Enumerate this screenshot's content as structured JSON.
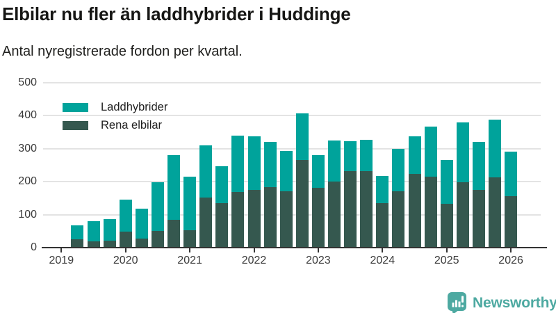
{
  "title": "Elbilar nu fler än laddhybrider i Huddinge",
  "subtitle": "Antal nyregistrerade fordon per kvartal.",
  "legend": [
    {
      "label": "Laddhybrider",
      "color": "#00a39b"
    },
    {
      "label": "Rena elbilar",
      "color": "#35584f"
    }
  ],
  "branding": {
    "name": "Newsworthy",
    "color": "#4da9a1"
  },
  "theme": {
    "title_color": "#161614",
    "axis_color": "#333333",
    "tick_label_color": "#3a3a3a",
    "grid_color": "#e3e3e3",
    "background": "#ffffff"
  },
  "chart_data": {
    "type": "bar",
    "stacked": true,
    "title": "Elbilar nu fler än laddhybrider i Huddinge",
    "subtitle": "Antal nyregistrerade fordon per kvartal.",
    "xlabel": "",
    "ylabel": "",
    "ylim": [
      0,
      500
    ],
    "yticks": [
      0,
      100,
      200,
      300,
      400,
      500
    ],
    "grid": true,
    "legend_position": "top-left-inside",
    "year_ticks": [
      "2019",
      "2020",
      "2021",
      "2022",
      "2023",
      "2024",
      "2025",
      "2026"
    ],
    "categories": [
      "2019 Q2",
      "2019 Q3",
      "2019 Q4",
      "2020 Q1",
      "2020 Q2",
      "2020 Q3",
      "2020 Q4",
      "2021 Q1",
      "2021 Q2",
      "2021 Q3",
      "2021 Q4",
      "2022 Q1",
      "2022 Q2",
      "2022 Q3",
      "2022 Q4",
      "2023 Q1",
      "2023 Q2",
      "2023 Q3",
      "2023 Q4",
      "2024 Q1",
      "2024 Q2",
      "2024 Q3",
      "2024 Q4",
      "2025 Q1",
      "2025 Q2",
      "2025 Q3",
      "2025 Q4",
      "2026 Q1"
    ],
    "series": [
      {
        "name": "Rena elbilar",
        "color": "#35584f",
        "stack_position": "bottom",
        "values": [
          25,
          18,
          22,
          48,
          27,
          50,
          85,
          53,
          152,
          135,
          168,
          175,
          183,
          170,
          266,
          180,
          200,
          232,
          231,
          134,
          170,
          224,
          215,
          132,
          197,
          175,
          212,
          155
        ]
      },
      {
        "name": "Laddhybrider",
        "color": "#00a39b",
        "stack_position": "top",
        "values": [
          43,
          62,
          64,
          97,
          90,
          148,
          194,
          161,
          158,
          112,
          172,
          162,
          137,
          123,
          141,
          101,
          124,
          91,
          95,
          83,
          129,
          113,
          151,
          133,
          181,
          145,
          176,
          136
        ]
      }
    ]
  }
}
